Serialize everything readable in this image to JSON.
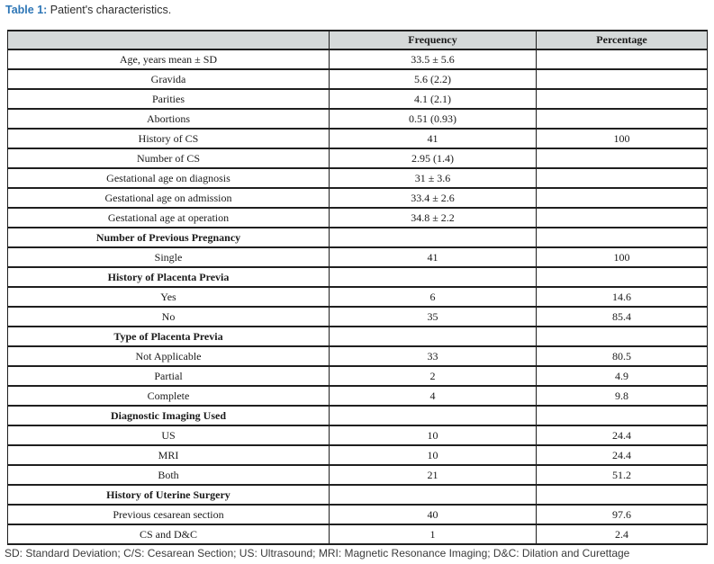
{
  "caption": {
    "label": "Table 1:",
    "text": " Patient's characteristics."
  },
  "table": {
    "columns": [
      "",
      "Frequency",
      "Percentage"
    ],
    "rows": [
      {
        "label": "Age, years mean ± SD",
        "frequency": "33.5 ± 5.6",
        "percentage": "",
        "section": false
      },
      {
        "label": "Gravida",
        "frequency": "5.6 (2.2)",
        "percentage": "",
        "section": false
      },
      {
        "label": "Parities",
        "frequency": "4.1 (2.1)",
        "percentage": "",
        "section": false
      },
      {
        "label": "Abortions",
        "frequency": "0.51 (0.93)",
        "percentage": "",
        "section": false
      },
      {
        "label": "History of CS",
        "frequency": "41",
        "percentage": "100",
        "section": false
      },
      {
        "label": "Number of CS",
        "frequency": "2.95 (1.4)",
        "percentage": "",
        "section": false
      },
      {
        "label": "Gestational age on diagnosis",
        "frequency": "31 ± 3.6",
        "percentage": "",
        "section": false
      },
      {
        "label": "Gestational age on admission",
        "frequency": "33.4 ± 2.6",
        "percentage": "",
        "section": false
      },
      {
        "label": "Gestational age at operation",
        "frequency": "34.8 ± 2.2",
        "percentage": "",
        "section": false
      },
      {
        "label": "Number of Previous Pregnancy",
        "frequency": "",
        "percentage": "",
        "section": true
      },
      {
        "label": "Single",
        "frequency": "41",
        "percentage": "100",
        "section": false
      },
      {
        "label": "History of Placenta Previa",
        "frequency": "",
        "percentage": "",
        "section": true
      },
      {
        "label": "Yes",
        "frequency": "6",
        "percentage": "14.6",
        "section": false
      },
      {
        "label": "No",
        "frequency": "35",
        "percentage": "85.4",
        "section": false
      },
      {
        "label": "Type of Placenta Previa",
        "frequency": "",
        "percentage": "",
        "section": true
      },
      {
        "label": "Not Applicable",
        "frequency": "33",
        "percentage": "80.5",
        "section": false
      },
      {
        "label": "Partial",
        "frequency": "2",
        "percentage": "4.9",
        "section": false
      },
      {
        "label": "Complete",
        "frequency": "4",
        "percentage": "9.8",
        "section": false
      },
      {
        "label": "Diagnostic Imaging Used",
        "frequency": "",
        "percentage": "",
        "section": true
      },
      {
        "label": "US",
        "frequency": "10",
        "percentage": "24.4",
        "section": false
      },
      {
        "label": "MRI",
        "frequency": "10",
        "percentage": "24.4",
        "section": false
      },
      {
        "label": "Both",
        "frequency": "21",
        "percentage": "51.2",
        "section": false
      },
      {
        "label": "History of Uterine Surgery",
        "frequency": "",
        "percentage": "",
        "section": true
      },
      {
        "label": "Previous cesarean section",
        "frequency": "40",
        "percentage": "97.6",
        "section": false
      },
      {
        "label": "CS and D&C",
        "frequency": "1",
        "percentage": "2.4",
        "section": false
      }
    ]
  },
  "footnote": "SD: Standard Deviation; C/S: Cesarean Section; US: Ultrasound; MRI: Magnetic Resonance Imaging; D&C: Dilation and Curettage",
  "colors": {
    "accent_blue": "#2e76b6",
    "header_bg": "#d5d9d9",
    "border": "#1f1f1f",
    "text": "#1a1a1a"
  }
}
